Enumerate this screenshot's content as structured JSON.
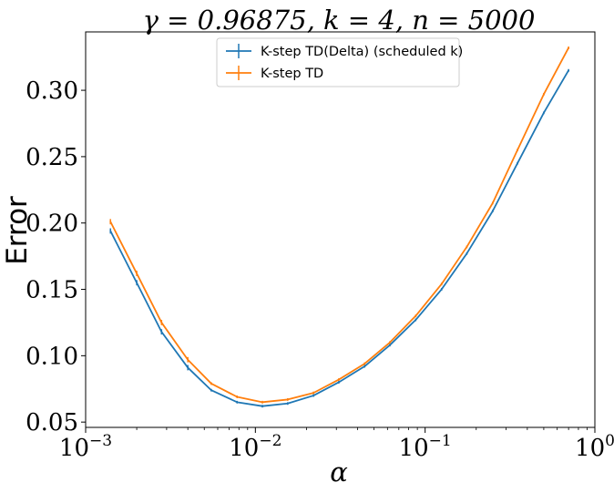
{
  "chart_data": {
    "type": "line",
    "title": "γ = 0.96875, k = 4, n = 5000",
    "xlabel": "α",
    "ylabel": "Error",
    "xscale": "log",
    "xlim": [
      0.001,
      1
    ],
    "ylim": [
      0.046,
      0.344
    ],
    "x_ticks": [
      {
        "value": 0.001,
        "base": "10",
        "exp": "−3"
      },
      {
        "value": 0.01,
        "base": "10",
        "exp": "−2"
      },
      {
        "value": 0.1,
        "base": "10",
        "exp": "−1"
      },
      {
        "value": 1,
        "base": "10",
        "exp": "0"
      }
    ],
    "y_ticks": [
      {
        "value": 0.05,
        "label": "0.05"
      },
      {
        "value": 0.1,
        "label": "0.10"
      },
      {
        "value": 0.15,
        "label": "0.15"
      },
      {
        "value": 0.2,
        "label": "0.20"
      },
      {
        "value": 0.25,
        "label": "0.25"
      },
      {
        "value": 0.3,
        "label": "0.30"
      }
    ],
    "grid": false,
    "legend_position": "top-center",
    "x": [
      0.0014,
      0.002,
      0.0028,
      0.004,
      0.0055,
      0.0078,
      0.011,
      0.0155,
      0.022,
      0.031,
      0.044,
      0.062,
      0.088,
      0.125,
      0.176,
      0.25,
      0.35,
      0.5,
      0.7
    ],
    "series": [
      {
        "name": "K-step TD(Delta) (scheduled k)",
        "color": "#1f77b4",
        "values": [
          0.194,
          0.155,
          0.118,
          0.091,
          0.074,
          0.065,
          0.062,
          0.064,
          0.07,
          0.08,
          0.092,
          0.108,
          0.127,
          0.15,
          0.177,
          0.209,
          0.245,
          0.283,
          0.315
        ],
        "errors": [
          0.002,
          0.002,
          0.002,
          0.002,
          0.001,
          0.001,
          0.001,
          0.001,
          0.001,
          0.001,
          0.001,
          0.001,
          0.001,
          0.001,
          0.001,
          0.001,
          0.001,
          0.001,
          0.001
        ]
      },
      {
        "name": "K-step TD",
        "color": "#ff7f0e",
        "values": [
          0.201,
          0.162,
          0.125,
          0.097,
          0.079,
          0.069,
          0.065,
          0.067,
          0.072,
          0.082,
          0.094,
          0.11,
          0.13,
          0.154,
          0.182,
          0.215,
          0.255,
          0.297,
          0.332
        ],
        "errors": [
          0.002,
          0.002,
          0.002,
          0.002,
          0.001,
          0.001,
          0.001,
          0.001,
          0.001,
          0.001,
          0.001,
          0.001,
          0.001,
          0.001,
          0.001,
          0.001,
          0.001,
          0.001,
          0.001
        ]
      }
    ]
  }
}
